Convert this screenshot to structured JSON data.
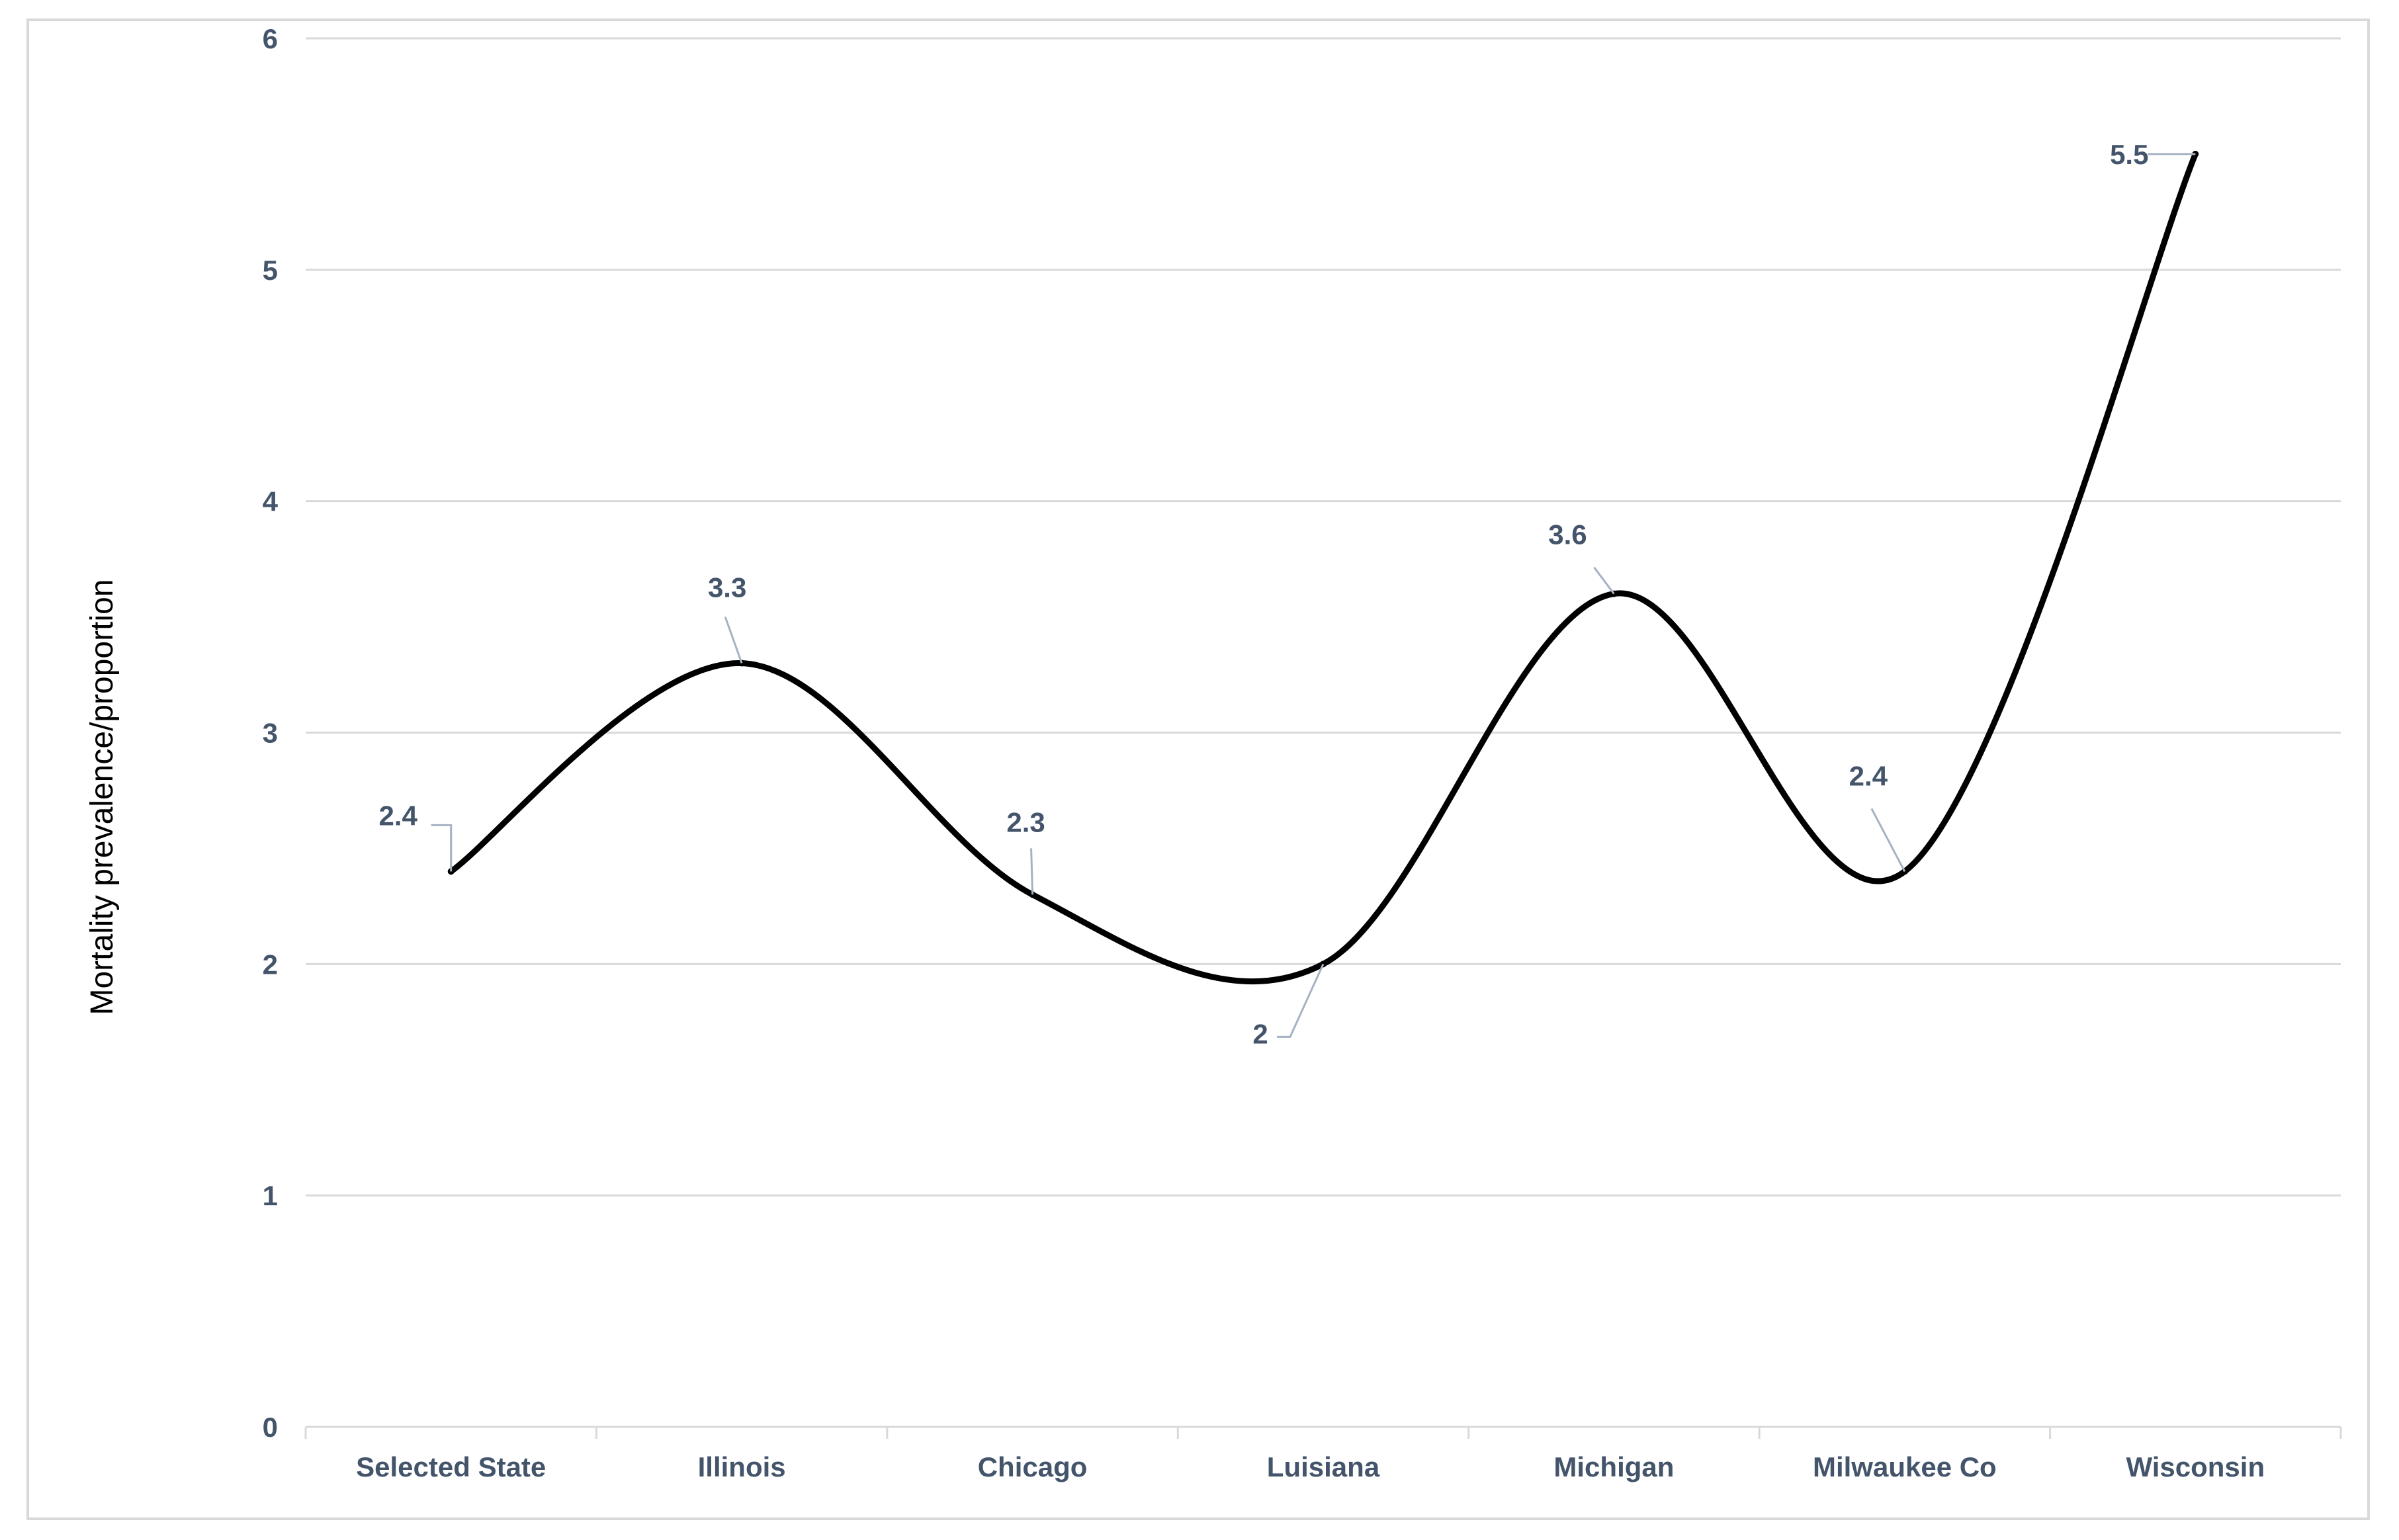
{
  "chart_data": {
    "type": "line",
    "title": "",
    "xlabel": "",
    "ylabel": "Mortality prevalence/proportion",
    "categories": [
      "Selected State",
      "Illinois",
      "Chicago",
      "Luisiana",
      "Michigan",
      "Milwaukee Co",
      "Wisconsin"
    ],
    "series": [
      {
        "values": [
          2.4,
          3.3,
          2.3,
          2,
          3.6,
          2.4,
          5.5
        ]
      }
    ],
    "data_labels": [
      "2.4",
      "3.3",
      "2.3",
      "2",
      "3.6",
      "2.4",
      "5.5"
    ],
    "y_ticks": [
      "0",
      "1",
      "2",
      "3",
      "4",
      "5",
      "6"
    ],
    "ylim": [
      0,
      6
    ],
    "grid": true,
    "smooth": true,
    "legend": "none",
    "colors": {
      "line": "#000000",
      "grid": "#d9d9d9",
      "text": "#44546a",
      "leader": "#a6b2c4"
    }
  }
}
